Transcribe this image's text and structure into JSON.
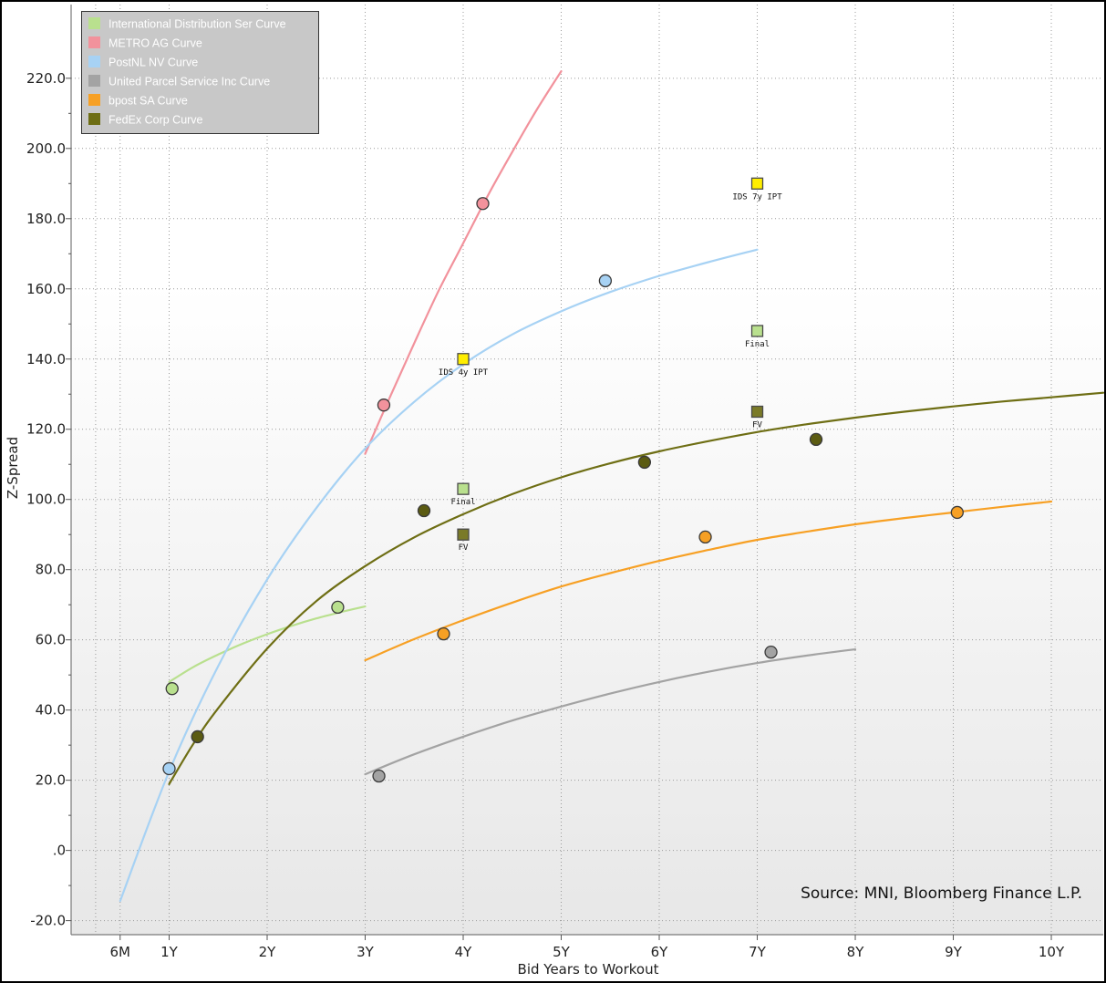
{
  "chart_data": {
    "type": "scatter",
    "xlabel": "Bid Years to Workout",
    "ylabel": "Z-Spread",
    "xlim": [
      0,
      10.53
    ],
    "ylim": [
      -24,
      241
    ],
    "grid": true,
    "x_ticks": [
      {
        "value": 0.5,
        "label": "6M"
      },
      {
        "value": 1,
        "label": "1Y"
      },
      {
        "value": 2,
        "label": "2Y"
      },
      {
        "value": 3,
        "label": "3Y"
      },
      {
        "value": 4,
        "label": "4Y"
      },
      {
        "value": 5,
        "label": "5Y"
      },
      {
        "value": 6,
        "label": "6Y"
      },
      {
        "value": 7,
        "label": "7Y"
      },
      {
        "value": 8,
        "label": "8Y"
      },
      {
        "value": 9,
        "label": "9Y"
      },
      {
        "value": 10,
        "label": "10Y"
      }
    ],
    "y_ticks": [
      {
        "value": 220,
        "label": "220.0"
      },
      {
        "value": 200,
        "label": "200.0"
      },
      {
        "value": 180,
        "label": "180.0"
      },
      {
        "value": 160,
        "label": "160.0"
      },
      {
        "value": 140,
        "label": "140.0"
      },
      {
        "value": 120,
        "label": "120.0"
      },
      {
        "value": 100,
        "label": "100.0"
      },
      {
        "value": 80,
        "label": "80.0"
      },
      {
        "value": 60,
        "label": "60.0"
      },
      {
        "value": 40,
        "label": "40.0"
      },
      {
        "value": 20,
        "label": "20.0"
      },
      {
        "value": 0,
        "label": ".0"
      },
      {
        "value": -20,
        "label": "-20.0"
      }
    ],
    "series": [
      {
        "name": "International Distribution Ser Curve",
        "color": "#b9e08e",
        "points": [
          {
            "x": 1.03,
            "y": 46.1
          },
          {
            "x": 2.72,
            "y": 69.3
          }
        ],
        "curve": [
          [
            1.0,
            48.0
          ],
          [
            1.25,
            52.3
          ],
          [
            1.5,
            55.8
          ],
          [
            1.75,
            58.9
          ],
          [
            2.0,
            61.6
          ],
          [
            2.25,
            64.0
          ],
          [
            2.5,
            66.1
          ],
          [
            2.75,
            67.9
          ],
          [
            3.0,
            69.5
          ]
        ]
      },
      {
        "name": "METRO AG Curve",
        "color": "#f2929c",
        "points": [
          {
            "x": 3.19,
            "y": 126.9
          },
          {
            "x": 4.2,
            "y": 184.3
          }
        ],
        "curve": [
          [
            3.0,
            113.0
          ],
          [
            3.25,
            129.0
          ],
          [
            3.5,
            144.5
          ],
          [
            3.75,
            159.5
          ],
          [
            4.0,
            173.0
          ],
          [
            4.25,
            186.5
          ],
          [
            4.5,
            199.0
          ],
          [
            4.75,
            211.0
          ],
          [
            5.0,
            222.0
          ]
        ]
      },
      {
        "name": "PostNL NV Curve",
        "color": "#a7d2f4",
        "points": [
          {
            "x": 1.0,
            "y": 23.3
          },
          {
            "x": 5.45,
            "y": 162.3
          }
        ],
        "curve": [
          [
            0.5,
            -14.4
          ],
          [
            1.0,
            22.5
          ],
          [
            1.5,
            52.5
          ],
          [
            2.0,
            77.2
          ],
          [
            2.5,
            97.5
          ],
          [
            3.0,
            114.5
          ],
          [
            3.5,
            127.8
          ],
          [
            4.0,
            138.5
          ],
          [
            4.5,
            147.0
          ],
          [
            5.0,
            153.6
          ],
          [
            5.5,
            159.1
          ],
          [
            6.0,
            163.7
          ],
          [
            6.5,
            167.6
          ],
          [
            7.0,
            171.2
          ]
        ]
      },
      {
        "name": "United Parcel Service Inc Curve",
        "color": "#a3a3a3",
        "points": [
          {
            "x": 3.14,
            "y": 21.2
          },
          {
            "x": 7.14,
            "y": 56.5
          }
        ],
        "curve": [
          [
            3.0,
            21.7
          ],
          [
            3.5,
            27.4
          ],
          [
            4.0,
            32.4
          ],
          [
            4.5,
            37.0
          ],
          [
            5.0,
            41.0
          ],
          [
            5.5,
            44.7
          ],
          [
            6.0,
            48.0
          ],
          [
            6.5,
            50.9
          ],
          [
            7.0,
            53.4
          ],
          [
            7.5,
            55.5
          ],
          [
            8.0,
            57.3
          ]
        ]
      },
      {
        "name": "bpost SA Curve",
        "color": "#f7a024",
        "points": [
          {
            "x": 3.8,
            "y": 61.7
          },
          {
            "x": 6.47,
            "y": 89.3
          },
          {
            "x": 9.04,
            "y": 96.3
          }
        ],
        "curve": [
          [
            3.0,
            54.2
          ],
          [
            3.5,
            60.2
          ],
          [
            4.0,
            65.6
          ],
          [
            4.5,
            70.6
          ],
          [
            5.0,
            75.2
          ],
          [
            5.5,
            79.0
          ],
          [
            6.0,
            82.5
          ],
          [
            6.5,
            85.6
          ],
          [
            7.0,
            88.5
          ],
          [
            7.5,
            90.8
          ],
          [
            8.0,
            92.9
          ],
          [
            8.5,
            94.7
          ],
          [
            9.0,
            96.3
          ],
          [
            9.5,
            97.9
          ],
          [
            10.0,
            99.4
          ]
        ]
      },
      {
        "name": "FedEx Corp Curve",
        "color": "#6e6e14",
        "point_color": "#5b5b12",
        "points": [
          {
            "x": 1.29,
            "y": 32.4
          },
          {
            "x": 3.6,
            "y": 96.8
          },
          {
            "x": 5.85,
            "y": 110.6
          },
          {
            "x": 7.6,
            "y": 117.1
          }
        ],
        "curve": [
          [
            1.0,
            18.9
          ],
          [
            1.25,
            30.5
          ],
          [
            1.5,
            40.5
          ],
          [
            2.0,
            57.5
          ],
          [
            2.5,
            71.0
          ],
          [
            3.0,
            81.0
          ],
          [
            3.5,
            89.2
          ],
          [
            4.0,
            95.8
          ],
          [
            4.5,
            101.5
          ],
          [
            5.0,
            106.3
          ],
          [
            5.5,
            110.3
          ],
          [
            6.0,
            113.7
          ],
          [
            6.5,
            116.6
          ],
          [
            7.0,
            119.2
          ],
          [
            7.5,
            121.4
          ],
          [
            8.0,
            123.3
          ],
          [
            8.5,
            125.0
          ],
          [
            9.0,
            126.5
          ],
          [
            9.5,
            127.9
          ],
          [
            10.0,
            129.1
          ],
          [
            10.53,
            130.4
          ]
        ]
      }
    ],
    "new_issue_markers": [
      {
        "x": 7,
        "y": 190,
        "label": "IDS 7y IPT",
        "color": "#ffee00"
      },
      {
        "x": 7,
        "y": 148,
        "label": "Final",
        "color": "#b9e08e"
      },
      {
        "x": 7,
        "y": 125,
        "label": "FV",
        "color": "#7a7a28"
      },
      {
        "x": 4,
        "y": 140,
        "label": "IDS 4y IPT",
        "color": "#ffee00"
      },
      {
        "x": 4,
        "y": 103,
        "label": "Final",
        "color": "#b9e08e"
      },
      {
        "x": 4,
        "y": 90,
        "label": "FV",
        "color": "#7a7a28"
      }
    ],
    "source": "Source: MNI, Bloomberg Finance L.P."
  }
}
